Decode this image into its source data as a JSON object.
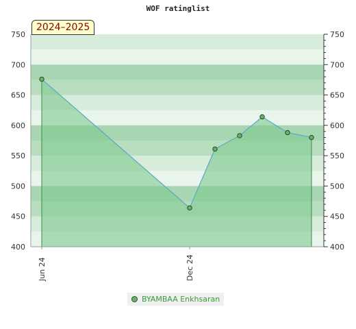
{
  "chart_data": {
    "type": "area",
    "title": "WOF ratinglist",
    "annotation": "2024–2025",
    "x_tick_labels": [
      "Jun 24",
      "Dec 24"
    ],
    "ylim": [
      400,
      750
    ],
    "y_ticks": [
      400,
      450,
      500,
      550,
      600,
      650,
      700,
      750
    ],
    "y_tick_labels": [
      "400",
      "450",
      "500",
      "550",
      "600",
      "650",
      "700",
      "750"
    ],
    "dual_y_axis": true,
    "legend_position": "bottom-center",
    "series": [
      {
        "name": "BYAMBAA Enkhsaran",
        "x": [
          "2024-06",
          "2024-12",
          "2025-01",
          "2025-02",
          "2025-03",
          "2025-04",
          "2025-05"
        ],
        "values": [
          676,
          464,
          561,
          583,
          614,
          588,
          580
        ]
      }
    ],
    "colors": {
      "line": "#5aa6c8",
      "fill": "#7fc98f",
      "marker": "#6ab06a",
      "band_dark": "#b3dcbd",
      "band_light": "#e3f2e6"
    }
  }
}
